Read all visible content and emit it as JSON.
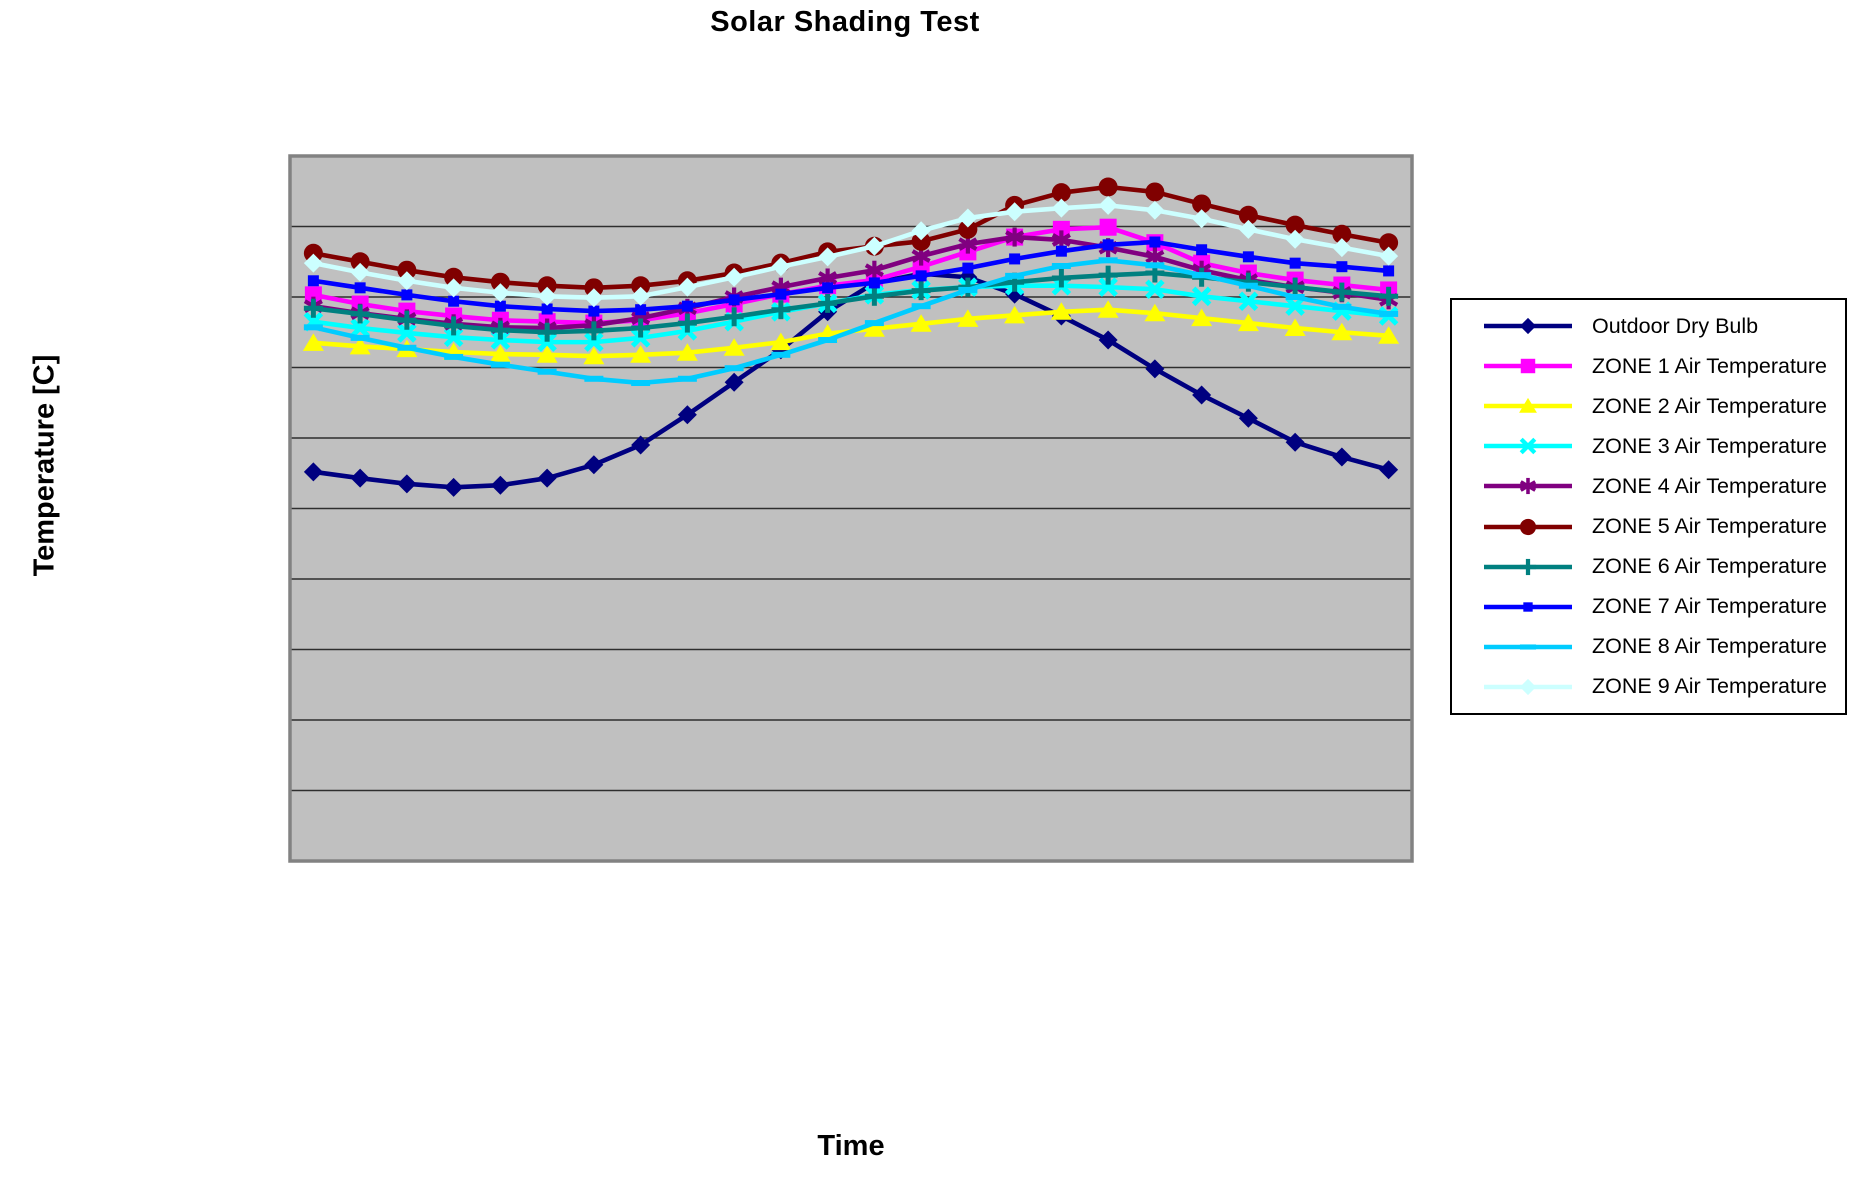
{
  "chart_data": {
    "type": "line",
    "title": "Solar Shading Test",
    "xlabel": "Time",
    "ylabel": "Temperature [C]",
    "plot_background": "#C0C0C0",
    "plot_border_color": "#828282",
    "gridlines": {
      "orientation": "horizontal",
      "count": 9,
      "color": "#2e2e2e"
    },
    "y_axis": {
      "min": 0,
      "max": 10,
      "unit": "gridline-divisions",
      "tick_labels_visible": false
    },
    "x_axis": {
      "points": 24,
      "tick_labels_visible": false
    },
    "legend": {
      "position": "right",
      "background": "#FFFFFF",
      "border_color": "#000000"
    },
    "series": [
      {
        "name": "Outdoor Dry Bulb",
        "color": "#000080",
        "marker": "diamond",
        "values": [
          5.52,
          5.43,
          5.35,
          5.3,
          5.33,
          5.43,
          5.62,
          5.9,
          6.33,
          6.79,
          7.25,
          7.79,
          8.2,
          8.33,
          8.28,
          8.04,
          7.73,
          7.39,
          6.98,
          6.61,
          6.28,
          5.94,
          5.73,
          5.55
        ]
      },
      {
        "name": "ZONE 1 Air Temperature",
        "color": "#FF00FF",
        "marker": "square",
        "values": [
          8.03,
          7.9,
          7.8,
          7.73,
          7.67,
          7.65,
          7.63,
          7.67,
          7.77,
          7.9,
          8.04,
          8.16,
          8.24,
          8.43,
          8.64,
          8.85,
          8.96,
          8.99,
          8.77,
          8.48,
          8.34,
          8.24,
          8.17,
          8.1
        ]
      },
      {
        "name": "ZONE 2 Air Temperature",
        "color": "#FFFF00",
        "marker": "triangle",
        "values": [
          7.35,
          7.3,
          7.26,
          7.22,
          7.19,
          7.18,
          7.16,
          7.18,
          7.21,
          7.28,
          7.36,
          7.48,
          7.55,
          7.62,
          7.69,
          7.74,
          7.79,
          7.82,
          7.77,
          7.7,
          7.63,
          7.56,
          7.5,
          7.45
        ]
      },
      {
        "name": "ZONE 3 Air Temperature",
        "color": "#00FFFF",
        "marker": "x",
        "values": [
          7.65,
          7.56,
          7.49,
          7.43,
          7.39,
          7.36,
          7.36,
          7.42,
          7.52,
          7.65,
          7.79,
          7.91,
          8.03,
          8.1,
          8.14,
          8.16,
          8.16,
          8.14,
          8.11,
          8.01,
          7.94,
          7.87,
          7.8,
          7.73
        ]
      },
      {
        "name": "ZONE 4 Air Temperature",
        "color": "#800080",
        "marker": "asterisk",
        "values": [
          7.87,
          7.77,
          7.69,
          7.62,
          7.57,
          7.56,
          7.6,
          7.7,
          7.84,
          8.0,
          8.14,
          8.27,
          8.38,
          8.58,
          8.75,
          8.85,
          8.81,
          8.7,
          8.57,
          8.38,
          8.24,
          8.14,
          8.06,
          7.96
        ]
      },
      {
        "name": "ZONE 5 Air Temperature",
        "color": "#800000",
        "marker": "circle",
        "values": [
          8.62,
          8.5,
          8.38,
          8.28,
          8.21,
          8.16,
          8.13,
          8.16,
          8.23,
          8.34,
          8.48,
          8.64,
          8.72,
          8.79,
          8.96,
          9.3,
          9.48,
          9.56,
          9.49,
          9.32,
          9.16,
          9.02,
          8.89,
          8.77
        ]
      },
      {
        "name": "ZONE 6 Air Temperature",
        "color": "#008080",
        "marker": "plus",
        "values": [
          7.84,
          7.76,
          7.67,
          7.59,
          7.53,
          7.5,
          7.52,
          7.56,
          7.63,
          7.72,
          7.82,
          7.91,
          8.01,
          8.09,
          8.14,
          8.21,
          8.27,
          8.31,
          8.34,
          8.28,
          8.21,
          8.14,
          8.07,
          8.01
        ]
      },
      {
        "name": "ZONE 7 Air Temperature",
        "color": "#0000FF",
        "marker": "square-small",
        "values": [
          8.23,
          8.13,
          8.03,
          7.94,
          7.87,
          7.83,
          7.8,
          7.82,
          7.87,
          7.96,
          8.04,
          8.13,
          8.2,
          8.3,
          8.41,
          8.54,
          8.65,
          8.74,
          8.78,
          8.67,
          8.57,
          8.48,
          8.43,
          8.37
        ]
      },
      {
        "name": "ZONE 8 Air Temperature",
        "color": "#00CCFF",
        "marker": "dash",
        "values": [
          7.57,
          7.42,
          7.28,
          7.15,
          7.04,
          6.94,
          6.84,
          6.78,
          6.84,
          6.99,
          7.18,
          7.39,
          7.63,
          7.87,
          8.1,
          8.3,
          8.44,
          8.52,
          8.45,
          8.31,
          8.16,
          8.0,
          7.86,
          7.76
        ]
      },
      {
        "name": "ZONE 9 Air Temperature",
        "color": "#CCFFFF",
        "marker": "diamond",
        "values": [
          8.48,
          8.35,
          8.23,
          8.13,
          8.06,
          8.01,
          7.99,
          8.01,
          8.14,
          8.28,
          8.43,
          8.57,
          8.72,
          8.94,
          9.12,
          9.21,
          9.26,
          9.3,
          9.23,
          9.11,
          8.96,
          8.82,
          8.7,
          8.58
        ]
      }
    ]
  }
}
